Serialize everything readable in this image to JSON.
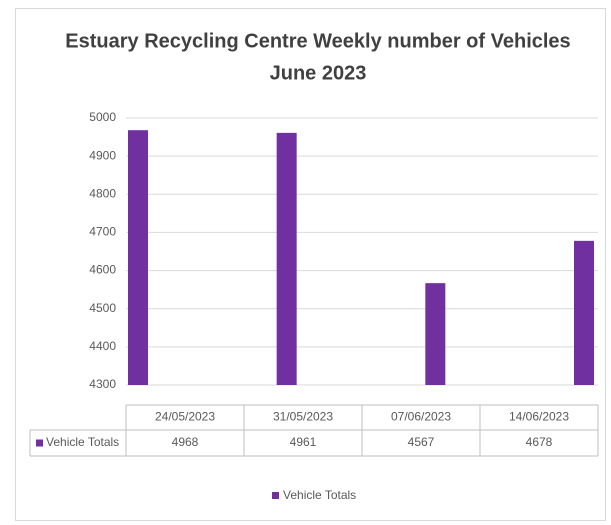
{
  "chart_data": {
    "type": "bar",
    "title": [
      "Estuary Recycling Centre Weekly number of Vehicles",
      "June 2023"
    ],
    "categories": [
      "24/05/2023",
      "31/05/2023",
      "07/06/2023",
      "14/06/2023"
    ],
    "series": [
      {
        "name": "Vehicle Totals",
        "color": "#7030a0",
        "values": [
          4968,
          4961,
          4567,
          4678
        ]
      }
    ],
    "ylim": [
      4300,
      5000
    ],
    "yticks": [
      4300,
      4400,
      4500,
      4600,
      4700,
      4800,
      4900,
      5000
    ],
    "grid": true,
    "data_table": true,
    "legend": "bottom"
  }
}
